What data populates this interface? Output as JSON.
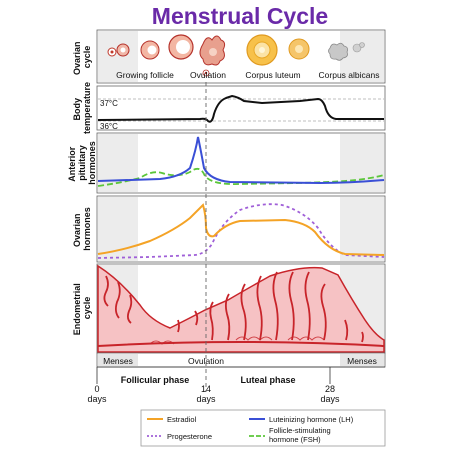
{
  "title": "Menstrual Cycle",
  "colors": {
    "title": "#6a2aa8",
    "estradiol": "#f4a326",
    "lh": "#3a4fd6",
    "progesterone": "#a060d8",
    "fsh": "#5cc63a",
    "temperature": "#111111",
    "endometrium_fill": "#f6c2c4",
    "endometrium_line": "#c8242a",
    "menses_shade": "#e6e6e6"
  },
  "rows": {
    "ovarian_cycle": "Ovarian cycle",
    "body_temperature": "Body temperature",
    "anterior_pituitary_hormones": "Anterior pituitary hormones",
    "ovarian_hormones": "Ovarian hormones",
    "endometrial_cycle": "Endometrial cycle"
  },
  "ovarian_stages": {
    "growing_follicle": "Growing follicle",
    "ovulation": "Ovulation",
    "corpus_luteum": "Corpus luteum",
    "corpus_albicans": "Corpus albicans"
  },
  "temperature_marks": {
    "high": "37°C",
    "low": "36°C"
  },
  "phase_bar": {
    "menses_left": "Menses",
    "ovulation": "Ovulation",
    "menses_right": "Menses"
  },
  "phases": {
    "follicular": "Follicular phase",
    "luteal": "Luteal phase"
  },
  "days": [
    {
      "value": "0",
      "unit": "days"
    },
    {
      "value": "14",
      "unit": "days"
    },
    {
      "value": "28",
      "unit": "days"
    }
  ],
  "legend": {
    "estradiol": "Estradiol",
    "lh": "Luteinizing hormone (LH)",
    "progesterone": "Progesterone",
    "fsh_line1": "Follicle-stimulating",
    "fsh_line2": "hormone (FSH)"
  }
}
